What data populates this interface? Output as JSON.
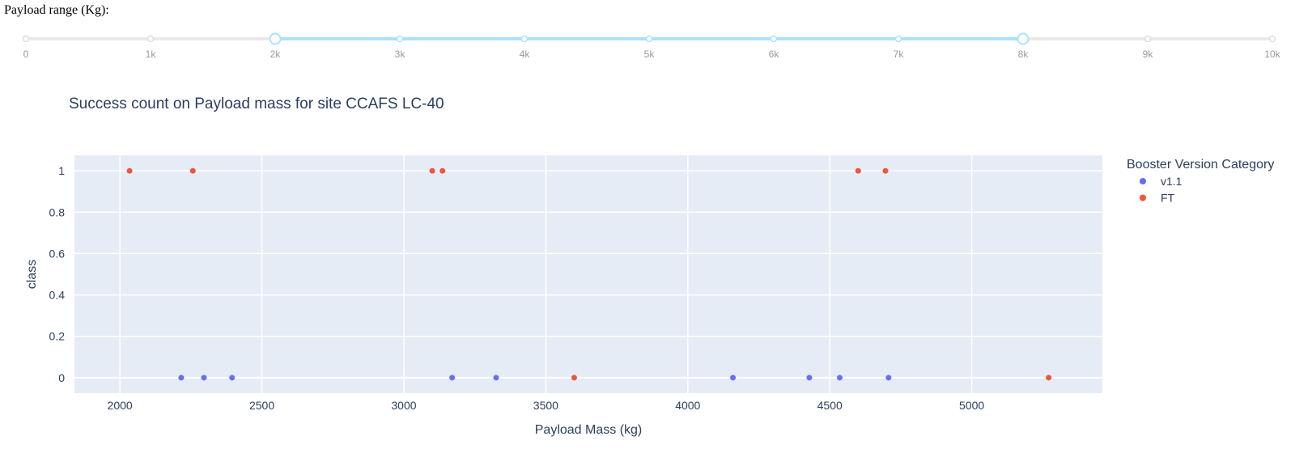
{
  "slider": {
    "label": "Payload range (Kg):",
    "min": 0,
    "max": 10000,
    "selected_range": [
      2000,
      8000
    ],
    "marks": [
      {
        "value": 0,
        "label": "0"
      },
      {
        "value": 1000,
        "label": "1k"
      },
      {
        "value": 2000,
        "label": "2k"
      },
      {
        "value": 3000,
        "label": "3k"
      },
      {
        "value": 4000,
        "label": "4k"
      },
      {
        "value": 5000,
        "label": "5k"
      },
      {
        "value": 6000,
        "label": "6k"
      },
      {
        "value": 7000,
        "label": "7k"
      },
      {
        "value": 8000,
        "label": "8k"
      },
      {
        "value": 9000,
        "label": "9k"
      },
      {
        "value": 10000,
        "label": "10k"
      }
    ],
    "track_color": "#e9e9e9",
    "active_color": "#abe2fb"
  },
  "chart_data": {
    "type": "scatter",
    "title": "Success count on Payload mass for site CCAFS LC-40",
    "xlabel": "Payload Mass (kg)",
    "ylabel": "class",
    "xlim": [
      1840,
      5460
    ],
    "ylim": [
      -0.075,
      1.075
    ],
    "xticks": [
      2000,
      2500,
      3000,
      3500,
      4000,
      4500,
      5000
    ],
    "yticks": [
      0,
      0.2,
      0.4,
      0.6,
      0.8,
      1
    ],
    "ytick_labels": [
      "0",
      "0.2",
      "0.4",
      "0.6",
      "0.8",
      "1"
    ],
    "grid": true,
    "plot_bg": "#e5ecf6",
    "legend": {
      "title": "Booster Version Category",
      "position": "right"
    },
    "series": [
      {
        "name": "v1.1",
        "color": "#636efa",
        "points": [
          {
            "x": 2216,
            "y": 0
          },
          {
            "x": 2296,
            "y": 0
          },
          {
            "x": 2395,
            "y": 0
          },
          {
            "x": 3170,
            "y": 0
          },
          {
            "x": 3325,
            "y": 0
          },
          {
            "x": 4159,
            "y": 0
          },
          {
            "x": 4428,
            "y": 0
          },
          {
            "x": 4535,
            "y": 0
          },
          {
            "x": 4707,
            "y": 0
          }
        ]
      },
      {
        "name": "FT",
        "color": "#ef553b",
        "points": [
          {
            "x": 2034,
            "y": 1
          },
          {
            "x": 2257,
            "y": 1
          },
          {
            "x": 3100,
            "y": 1
          },
          {
            "x": 3136,
            "y": 1
          },
          {
            "x": 4600,
            "y": 1
          },
          {
            "x": 4696,
            "y": 1
          },
          {
            "x": 3600,
            "y": 0
          },
          {
            "x": 5271,
            "y": 0
          }
        ]
      }
    ]
  }
}
